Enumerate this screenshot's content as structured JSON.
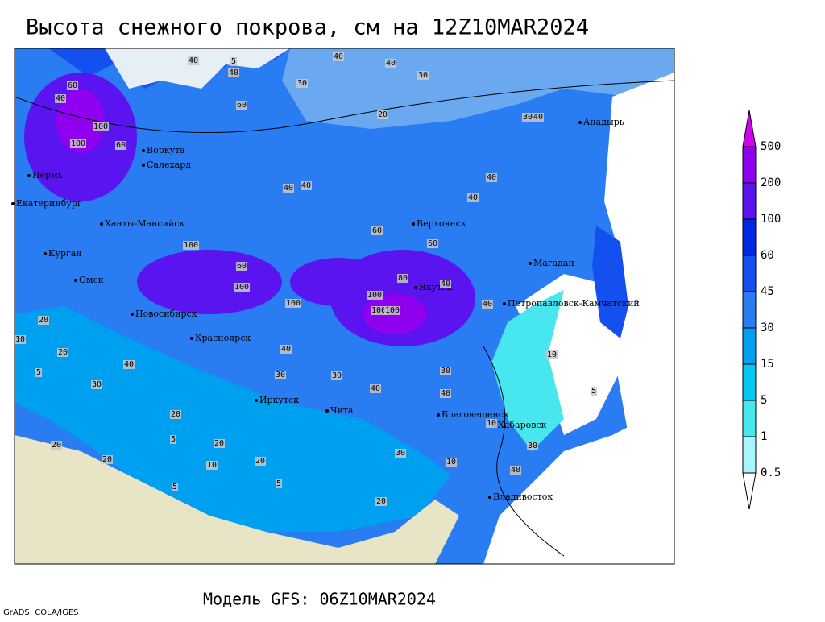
{
  "header": {
    "title": "Высота снежного покрова, см на 12Z10MAR2024"
  },
  "footer": {
    "model": "Модель GFS: 06Z10MAR2024",
    "credit": "GrADS: COLA/IGES"
  },
  "map": {
    "cities": [
      "Воркута",
      "Салехард",
      "Пермь",
      "Екатеринбург",
      "Ханты-Мансийск",
      "Курган",
      "Омск",
      "Новосибирск",
      "Красноярск",
      "Иркутск",
      "Чита",
      "Верхоянск",
      "Якутск",
      "Магадан",
      "Петропавловск-Камчатский",
      "Анадырь",
      "Благовещенск",
      "Хабаровск",
      "Владивосток"
    ],
    "contour_labels": [
      60,
      40,
      100,
      100,
      60,
      40,
      60,
      40,
      5,
      30,
      40,
      40,
      30,
      20,
      30,
      40,
      40,
      40,
      40,
      40,
      60,
      60,
      100,
      60,
      100,
      100,
      100,
      80,
      100,
      100,
      40,
      40,
      40,
      20,
      20,
      10,
      5,
      30,
      30,
      40,
      30,
      40,
      40,
      20,
      20,
      20,
      10,
      5,
      20,
      30,
      10,
      40,
      10,
      5,
      10,
      20,
      5,
      5,
      30,
      30,
      20
    ]
  },
  "legend": {
    "levels": [
      0.5,
      1,
      5,
      15,
      30,
      45,
      60,
      100,
      200,
      500
    ],
    "colors": [
      "#ffffff",
      "#a8f4ff",
      "#48e6ee",
      "#00c8f0",
      "#00a0f0",
      "#2a7cf2",
      "#1450f0",
      "#0028e0",
      "#5a14f0",
      "#9000f0",
      "#d200f0"
    ]
  }
}
